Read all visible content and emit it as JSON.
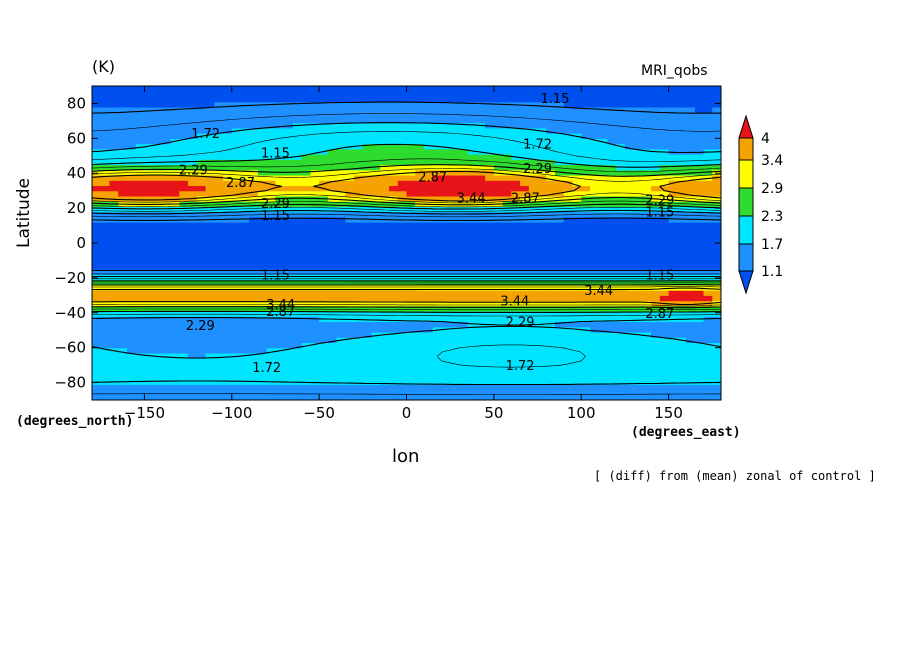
{
  "chart_data": {
    "type": "contour",
    "unit_label": "(K)",
    "model_label": "MRI_qobs",
    "xlabel": "lon",
    "ylabel": "Latitude",
    "x_units": "(degrees_east)",
    "y_units": "(degrees_north)",
    "footnote": "[ (diff) from (mean) zonal of control ]",
    "xlim": [
      -180,
      180
    ],
    "ylim": [
      -90,
      90
    ],
    "x_ticks": [
      -150,
      -100,
      -50,
      0,
      50,
      100,
      150
    ],
    "y_ticks": [
      80,
      60,
      40,
      20,
      0,
      -20,
      -40,
      -60,
      -80
    ],
    "x_tick_labels": [
      "−150",
      "−100",
      "−50",
      "0",
      "50",
      "100",
      "150"
    ],
    "y_tick_labels": [
      "80",
      "60",
      "40",
      "20",
      "0",
      "−20",
      "−40",
      "−60",
      "−80"
    ],
    "contour_levels": [
      1.15,
      1.72,
      2.29,
      2.87,
      3.44
    ],
    "colorbar": {
      "labels": [
        "4",
        "3.4",
        "2.9",
        "2.3",
        "1.7",
        "1.1"
      ],
      "colors": [
        "#e8141a",
        "#f5a300",
        "#ffff00",
        "#2ddc2d",
        "#00e5ff",
        "#1e90ff",
        "#0050f0"
      ]
    },
    "contour_labels": [
      {
        "text": "1.15",
        "lon": 85,
        "lat": 83
      },
      {
        "text": "1.72",
        "lon": -115,
        "lat": 63
      },
      {
        "text": "1.15",
        "lon": -75,
        "lat": 52
      },
      {
        "text": "1.72",
        "lon": 75,
        "lat": 57
      },
      {
        "text": "2.29",
        "lon": 75,
        "lat": 43
      },
      {
        "text": "2.29",
        "lon": -122,
        "lat": 42
      },
      {
        "text": "2.87",
        "lon": -95,
        "lat": 35
      },
      {
        "text": "2.87",
        "lon": 15,
        "lat": 38
      },
      {
        "text": "3.44",
        "lon": 37,
        "lat": 26
      },
      {
        "text": "2.87",
        "lon": 68,
        "lat": 26
      },
      {
        "text": "2.29",
        "lon": -75,
        "lat": 23
      },
      {
        "text": "1.15",
        "lon": -75,
        "lat": 16
      },
      {
        "text": "2.29",
        "lon": 145,
        "lat": 25
      },
      {
        "text": "1.15",
        "lon": 145,
        "lat": 18
      },
      {
        "text": "1.15",
        "lon": -75,
        "lat": -18
      },
      {
        "text": "1.15",
        "lon": 145,
        "lat": -18
      },
      {
        "text": "3.44",
        "lon": -72,
        "lat": -35
      },
      {
        "text": "2.87",
        "lon": -72,
        "lat": -39
      },
      {
        "text": "3.44",
        "lon": 62,
        "lat": -33
      },
      {
        "text": "3.44",
        "lon": 110,
        "lat": -27
      },
      {
        "text": "2.87",
        "lon": 145,
        "lat": -40
      },
      {
        "text": "2.29",
        "lon": -118,
        "lat": -47
      },
      {
        "text": "2.29",
        "lon": 65,
        "lat": -45
      },
      {
        "text": "1.72",
        "lon": -80,
        "lat": -71
      },
      {
        "text": "1.72",
        "lon": 65,
        "lat": -70
      }
    ]
  }
}
